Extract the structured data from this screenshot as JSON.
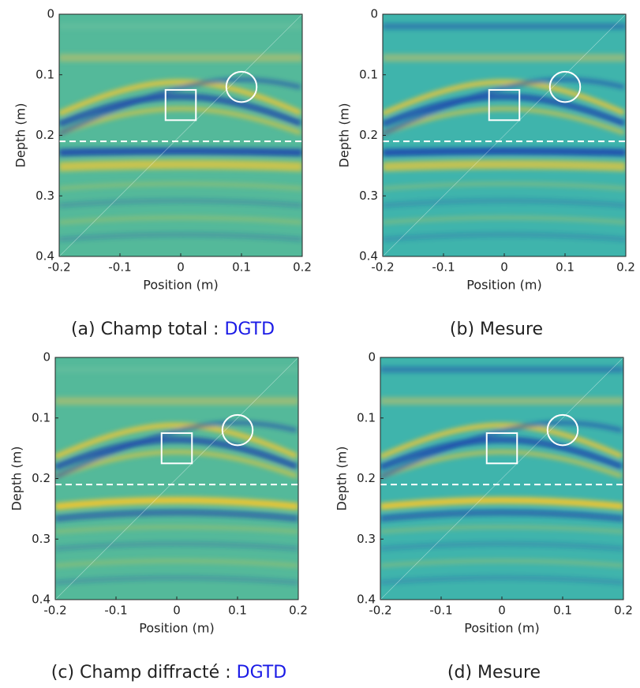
{
  "chart_data": [
    {
      "type": "heatmap",
      "caption": "(a) Champ total : ",
      "caption_highlight": "DGTD",
      "x_label": "Position (m)",
      "y_label": "Depth (m)",
      "xlim": [
        -0.2,
        0.2
      ],
      "ylim": [
        0,
        0.4
      ],
      "y_inverted": true,
      "xticks": [
        -0.2,
        -0.1,
        0,
        0.1,
        0.2
      ],
      "yticks": [
        0,
        0.1,
        0.2,
        0.3,
        0.4
      ],
      "hline": 0.21,
      "square": {
        "x": [
          -0.025,
          0.025
        ],
        "y": [
          0.125,
          0.175
        ]
      },
      "circle": {
        "x": 0.1,
        "y": 0.12,
        "r": 0.025
      }
    },
    {
      "type": "heatmap",
      "caption": "(b) Mesure",
      "x_label": "Position (m)",
      "y_label": "Depth (m)",
      "xlim": [
        -0.2,
        0.2
      ],
      "ylim": [
        0,
        0.4
      ],
      "y_inverted": true,
      "xticks": [
        -0.2,
        -0.1,
        0,
        0.1,
        0.2
      ],
      "yticks": [
        0,
        0.1,
        0.2,
        0.3,
        0.4
      ],
      "hline": 0.21,
      "square": {
        "x": [
          -0.025,
          0.025
        ],
        "y": [
          0.125,
          0.175
        ]
      },
      "circle": {
        "x": 0.1,
        "y": 0.12,
        "r": 0.025
      }
    },
    {
      "type": "heatmap",
      "caption": "(c) Champ diffracté : ",
      "caption_highlight": "DGTD",
      "x_label": "Position (m)",
      "y_label": "Depth (m)",
      "xlim": [
        -0.2,
        0.2
      ],
      "ylim": [
        0,
        0.4
      ],
      "y_inverted": true,
      "xticks": [
        -0.2,
        -0.1,
        0,
        0.1,
        0.2
      ],
      "yticks": [
        0,
        0.1,
        0.2,
        0.3,
        0.4
      ],
      "hline": 0.21,
      "square": {
        "x": [
          -0.025,
          0.025
        ],
        "y": [
          0.125,
          0.175
        ]
      },
      "circle": {
        "x": 0.1,
        "y": 0.12,
        "r": 0.025
      }
    },
    {
      "type": "heatmap",
      "caption": "(d) Mesure",
      "x_label": "Position (m)",
      "y_label": "Depth (m)",
      "xlim": [
        -0.2,
        0.2
      ],
      "ylim": [
        0,
        0.4
      ],
      "y_inverted": true,
      "xticks": [
        -0.2,
        -0.1,
        0,
        0.1,
        0.2
      ],
      "yticks": [
        0,
        0.1,
        0.2,
        0.3,
        0.4
      ],
      "hline": 0.21,
      "square": {
        "x": [
          -0.025,
          0.025
        ],
        "y": [
          0.125,
          0.175
        ]
      },
      "circle": {
        "x": 0.1,
        "y": 0.12,
        "r": 0.025
      }
    }
  ]
}
